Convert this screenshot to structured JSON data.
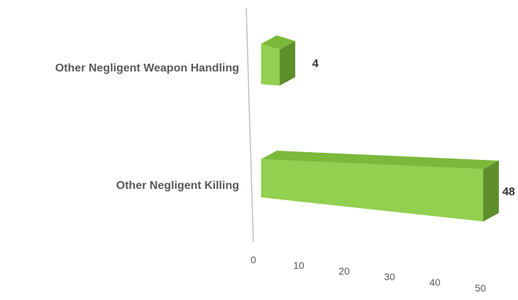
{
  "chart_data": {
    "type": "bar",
    "orientation": "horizontal",
    "style": "3d-perspective",
    "categories": [
      "Other Negligent Weapon Handling",
      "Other Negligent Killing"
    ],
    "values": [
      4,
      48
    ],
    "data_labels": [
      "4",
      "48"
    ],
    "x_ticks": [
      "0",
      "10",
      "20",
      "30",
      "40",
      "50"
    ],
    "xlim": [
      0,
      50
    ],
    "title": "",
    "xlabel": "",
    "ylabel": "",
    "grid": false,
    "legend": "none",
    "colors": {
      "bar_front": "#92d050",
      "bar_top": "#7ab93a",
      "bar_side": "#5f8f2c",
      "axis_line": "#bfbfbf"
    }
  }
}
